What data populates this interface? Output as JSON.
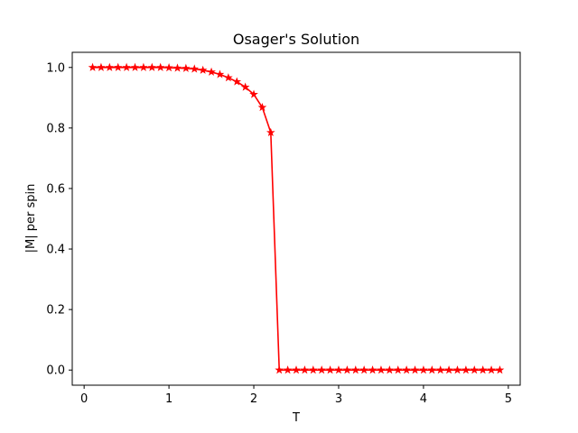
{
  "chart_data": {
    "type": "line",
    "title": "Osager's Solution",
    "xlabel": "T",
    "ylabel": "|M| per spin",
    "xlim": [
      -0.14,
      5.14
    ],
    "ylim": [
      -0.05,
      1.05
    ],
    "xticks": [
      "0",
      "1",
      "2",
      "3",
      "4",
      "5"
    ],
    "yticks": [
      "0.0",
      "0.2",
      "0.4",
      "0.6",
      "0.8",
      "1.0"
    ],
    "grid": false,
    "line_color": "#ff0000",
    "marker": "star",
    "series": [
      {
        "x": [
          0.1,
          0.2,
          0.3,
          0.4,
          0.5,
          0.6,
          0.7,
          0.8,
          0.9,
          1.0,
          1.1,
          1.2,
          1.3,
          1.4,
          1.5,
          1.6,
          1.7,
          1.8,
          1.9,
          2.0,
          2.1,
          2.2,
          2.3,
          2.4,
          2.5,
          2.6,
          2.7,
          2.8,
          2.9,
          3.0,
          3.1,
          3.2,
          3.3,
          3.4,
          3.5,
          3.6,
          3.7,
          3.8,
          3.9,
          4.0,
          4.1,
          4.2,
          4.3,
          4.4,
          4.5,
          4.6,
          4.7,
          4.8,
          4.9
        ],
        "values": [
          1.0,
          1.0,
          1.0,
          1.0,
          1.0,
          1.0,
          1.0,
          1.0,
          1.0,
          0.999,
          0.998,
          0.997,
          0.995,
          0.991,
          0.985,
          0.977,
          0.966,
          0.953,
          0.935,
          0.911,
          0.868,
          0.785,
          0.0,
          0.0,
          0.0,
          0.0,
          0.0,
          0.0,
          0.0,
          0.0,
          0.0,
          0.0,
          0.0,
          0.0,
          0.0,
          0.0,
          0.0,
          0.0,
          0.0,
          0.0,
          0.0,
          0.0,
          0.0,
          0.0,
          0.0,
          0.0,
          0.0,
          0.0,
          0.0
        ]
      }
    ]
  }
}
